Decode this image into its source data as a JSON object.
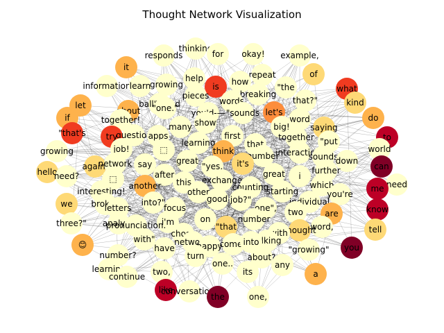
{
  "title": "Thought Network Visualization",
  "palette": {
    "low": "#ffffcc",
    "light": "#fed976",
    "mid": "#feb24c",
    "orange": "#fd8d3c",
    "red_orange": "#f03b20",
    "red": "#bd0026",
    "dark_red": "#800026",
    "edge": "#000000",
    "background": "#ffffff"
  },
  "nodes": [
    {
      "label": "thinking",
      "level": "low"
    },
    {
      "label": "responds",
      "level": "low"
    },
    {
      "label": "for",
      "level": "low"
    },
    {
      "label": "okay!",
      "level": "low"
    },
    {
      "label": "example,",
      "level": "low"
    },
    {
      "label": "it",
      "level": "mid"
    },
    {
      "label": "of",
      "level": "light"
    },
    {
      "label": "help",
      "level": "low"
    },
    {
      "label": "repeat",
      "level": "low"
    },
    {
      "label": "information",
      "level": "low"
    },
    {
      "label": "learn",
      "level": "low"
    },
    {
      "label": "growing",
      "level": "low"
    },
    {
      "label": "is",
      "level": "red_orange"
    },
    {
      "label": "how",
      "level": "low"
    },
    {
      "label": "\"the",
      "level": "low"
    },
    {
      "label": "what",
      "level": "red_orange"
    },
    {
      "label": "pieces",
      "level": "low"
    },
    {
      "label": "breaking",
      "level": "low"
    },
    {
      "label": "let",
      "level": "mid"
    },
    {
      "label": "ball\"s and",
      "level": "low"
    },
    {
      "label": "words",
      "level": "low"
    },
    {
      "label": "that?\"",
      "level": "low"
    },
    {
      "label": "kind",
      "level": "light"
    },
    {
      "label": "about",
      "level": "mid"
    },
    {
      "label": "\"one.\"",
      "level": "low"
    },
    {
      "label": "you'd-—",
      "level": "low"
    },
    {
      "label": "\"sounds",
      "level": "low"
    },
    {
      "label": "let's",
      "level": "orange"
    },
    {
      "label": "do",
      "level": "mid"
    },
    {
      "label": "if",
      "level": "mid"
    },
    {
      "label": "together!",
      "level": "low"
    },
    {
      "label": "word",
      "level": "low"
    },
    {
      "label": "\"that's",
      "level": "red_orange"
    },
    {
      "label": "many",
      "level": "low"
    },
    {
      "label": "show",
      "level": "low"
    },
    {
      "label": "big!",
      "level": "low"
    },
    {
      "label": "saying",
      "level": "light"
    },
    {
      "label": "try",
      "level": "red_orange"
    },
    {
      "label": "question",
      "level": "low"
    },
    {
      "label": "apps",
      "level": "low"
    },
    {
      "label": "first",
      "level": "low"
    },
    {
      "label": "together",
      "level": "low"
    },
    {
      "label": "to",
      "level": "red"
    },
    {
      "label": "learning",
      "level": "low"
    },
    {
      "label": "\"put",
      "level": "low"
    },
    {
      "label": "growing",
      "level": "low"
    },
    {
      "label": "job!",
      "level": "low"
    },
    {
      "label": "⬚",
      "level": "low"
    },
    {
      "label": "think",
      "level": "mid"
    },
    {
      "label": "that",
      "level": "low"
    },
    {
      "label": "world",
      "level": "low"
    },
    {
      "label": "interaction!",
      "level": "low"
    },
    {
      "label": "number",
      "level": "low"
    },
    {
      "label": "sounds",
      "level": "low"
    },
    {
      "label": "can",
      "level": "dark_red"
    },
    {
      "label": "hello",
      "level": "light"
    },
    {
      "label": "again.",
      "level": "light"
    },
    {
      "label": "network",
      "level": "low"
    },
    {
      "label": "say",
      "level": "low"
    },
    {
      "label": "great",
      "level": "low"
    },
    {
      "label": "\"yes,",
      "level": "low"
    },
    {
      "label": "it's",
      "level": "light"
    },
    {
      "label": "down",
      "level": "low"
    },
    {
      "label": "need?",
      "level": "low"
    },
    {
      "label": "further",
      "level": "low"
    },
    {
      "label": "need",
      "level": "low"
    },
    {
      "label": "⬚",
      "level": "low"
    },
    {
      "label": "after",
      "level": "low"
    },
    {
      "label": "great",
      "level": "low"
    },
    {
      "label": "i",
      "level": "low"
    },
    {
      "label": "interesting!",
      "level": "low"
    },
    {
      "label": "this",
      "level": "low"
    },
    {
      "label": "exchange",
      "level": "low"
    },
    {
      "label": "me",
      "level": "red"
    },
    {
      "label": "another",
      "level": "mid"
    },
    {
      "label": "counting",
      "level": "low"
    },
    {
      "label": "which",
      "level": "low"
    },
    {
      "label": "we",
      "level": "light"
    },
    {
      "label": "broken",
      "level": "low"
    },
    {
      "label": "other",
      "level": "low"
    },
    {
      "label": "starting",
      "level": "low"
    },
    {
      "label": "you're",
      "level": "low"
    },
    {
      "label": "letters",
      "level": "low"
    },
    {
      "label": "into?\"",
      "level": "low"
    },
    {
      "label": "good",
      "level": "low"
    },
    {
      "label": "job?\"",
      "level": "low"
    },
    {
      "label": "individual",
      "level": "low"
    },
    {
      "label": "focus",
      "level": "low"
    },
    {
      "label": "one\",",
      "level": "low"
    },
    {
      "label": "know",
      "level": "red"
    },
    {
      "label": "three?\"",
      "level": "low"
    },
    {
      "label": "two",
      "level": "low"
    },
    {
      "label": "are",
      "level": "mid"
    },
    {
      "label": "analyze",
      "level": "low"
    },
    {
      "label": "i'm",
      "level": "low"
    },
    {
      "label": "on",
      "level": "low"
    },
    {
      "label": "number",
      "level": "low"
    },
    {
      "label": "word,",
      "level": "low"
    },
    {
      "label": "pronunciation.",
      "level": "low"
    },
    {
      "label": "\"that",
      "level": "light"
    },
    {
      "label": "thought",
      "level": "light"
    },
    {
      "label": "tell",
      "level": "light"
    },
    {
      "label": "chose",
      "level": "low"
    },
    {
      "label": "with",
      "level": "low"
    },
    {
      "label": "😊",
      "level": "mid"
    },
    {
      "label": "with\"",
      "level": "low"
    },
    {
      "label": "network!",
      "level": "low"
    },
    {
      "label": "talking",
      "level": "low"
    },
    {
      "label": "have",
      "level": "low"
    },
    {
      "label": "happy",
      "level": "low"
    },
    {
      "label": "comes",
      "level": "low"
    },
    {
      "label": "into",
      "level": "low"
    },
    {
      "label": "you",
      "level": "dark_red"
    },
    {
      "label": "number?",
      "level": "low"
    },
    {
      "label": "\"growing\"",
      "level": "low"
    },
    {
      "label": "turn",
      "level": "low"
    },
    {
      "label": "about?",
      "level": "low"
    },
    {
      "label": "one..",
      "level": "low"
    },
    {
      "label": "any",
      "level": "low"
    },
    {
      "label": "learning",
      "level": "low"
    },
    {
      "label": "continue",
      "level": "low"
    },
    {
      "label": "two,",
      "level": "low"
    },
    {
      "label": "its",
      "level": "low"
    },
    {
      "label": "a",
      "level": "mid"
    },
    {
      "label": "like",
      "level": "red"
    },
    {
      "label": "conversation!",
      "level": "low"
    },
    {
      "label": "the",
      "level": "dark_red"
    },
    {
      "label": "one,",
      "level": "low"
    }
  ]
}
